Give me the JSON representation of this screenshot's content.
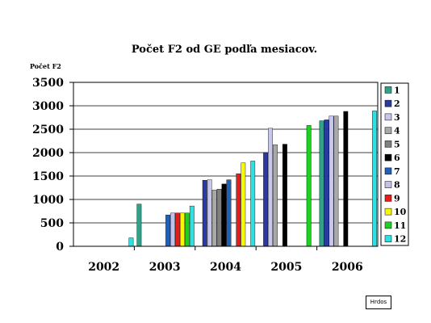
{
  "chart_data": {
    "type": "bar",
    "title": "Počet F2 od GE podľa mesiacov.",
    "ylabel": "Počet F2",
    "xlabel": "",
    "ylim": [
      0,
      3500
    ],
    "yticks": [
      "0",
      "500",
      "1000",
      "1500",
      "2000",
      "2500",
      "3000",
      "3500"
    ],
    "grid": true,
    "legend": "right",
    "categories": [
      "2002",
      "2003",
      "2004",
      "2005",
      "2006"
    ],
    "series": [
      {
        "name": "1",
        "color": "#33a088",
        "values": [
          null,
          900,
          null,
          null,
          2680
        ]
      },
      {
        "name": "2",
        "color": "#2b3aa0",
        "values": [
          null,
          null,
          1410,
          2000,
          2700
        ]
      },
      {
        "name": "3",
        "color": "#c7c7ee",
        "values": [
          null,
          null,
          1420,
          2520,
          2780
        ]
      },
      {
        "name": "4",
        "color": "#a9a9a9",
        "values": [
          null,
          null,
          1200,
          2170,
          2780
        ]
      },
      {
        "name": "5",
        "color": "#808080",
        "values": [
          null,
          null,
          1220,
          null,
          null
        ]
      },
      {
        "name": "6",
        "color": "#000000",
        "values": [
          null,
          null,
          1330,
          2180,
          2880
        ]
      },
      {
        "name": "7",
        "color": "#2060b8",
        "values": [
          null,
          670,
          1420,
          null,
          null
        ]
      },
      {
        "name": "8",
        "color": "#c2c2e6",
        "values": [
          null,
          710,
          null,
          null,
          null
        ]
      },
      {
        "name": "9",
        "color": "#e0201c",
        "values": [
          null,
          710,
          1550,
          null,
          null
        ]
      },
      {
        "name": "10",
        "color": "#f8f800",
        "values": [
          null,
          710,
          1780,
          null,
          null
        ]
      },
      {
        "name": "11",
        "color": "#20d020",
        "values": [
          null,
          710,
          null,
          2580,
          null
        ]
      },
      {
        "name": "12",
        "color": "#30e0e0",
        "values": [
          180,
          860,
          1820,
          null,
          2890
        ]
      }
    ]
  },
  "author_box": "Hrdos"
}
